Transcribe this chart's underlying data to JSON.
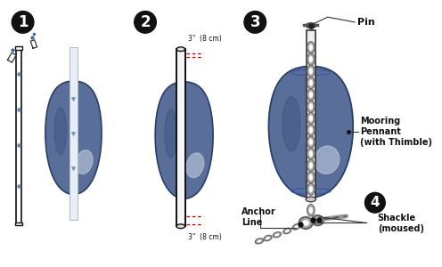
{
  "bg_color": "#ffffff",
  "buoy_fill": "#5a6e9a",
  "buoy_edge": "#2a3e6a",
  "buoy_highlight": "#8899cc",
  "chain_color": "#aaaaaa",
  "chain_edge": "#666666",
  "rod_fill": "#ffffff",
  "rod_edge": "#111111",
  "step_bg": "#111111",
  "step_text": "#ffffff",
  "red_color": "#cc0000",
  "label_color": "#111111",
  "step1_label": "1",
  "step2_label": "2",
  "step3_label": "3",
  "step4_label": "4",
  "pin_label": "Pin",
  "mooring_label": "Mooring\nPennant\n(with Thimble)",
  "anchor_label": "Anchor\nLine",
  "shackle_label": "Shackle\n(moused)",
  "meas_top": "3\"  (8 cm)",
  "meas_bot": "3\"  (8 cm)"
}
